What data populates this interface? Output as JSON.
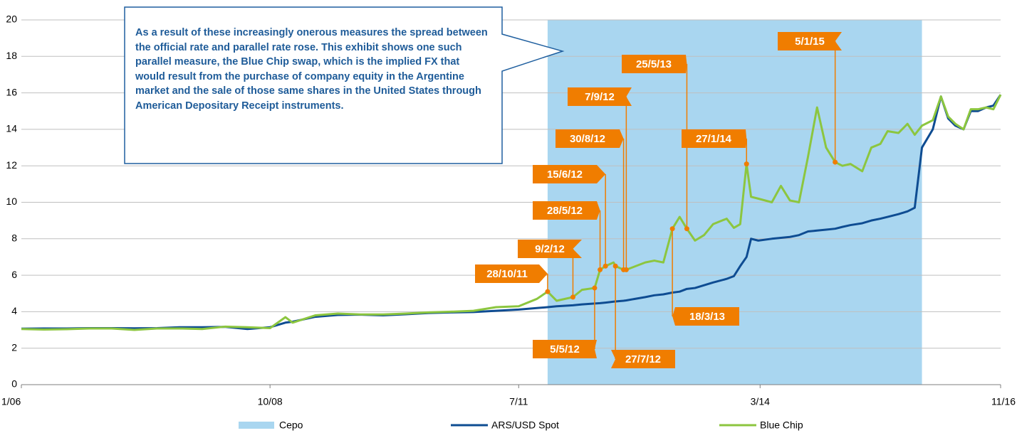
{
  "chart_data": {
    "type": "line",
    "note": "As a result of these increasingly onerous measures the spread between the official rate and parallel rate rose. This exhibit shows one such parallel measure, the Blue Chip swap, which is the implied FX that would result from the purchase of company equity in the Argentine market and the sale of those same shares in the United States through American Depositary Receipt instruments.",
    "x": [
      2006.0,
      2006.25,
      2006.5,
      2006.75,
      2007.0,
      2007.25,
      2007.5,
      2007.75,
      2008.0,
      2008.25,
      2008.5,
      2008.75,
      2008.92,
      2009.0,
      2009.25,
      2009.5,
      2009.75,
      2010.0,
      2010.25,
      2010.5,
      2010.75,
      2011.0,
      2011.25,
      2011.5,
      2011.7,
      2011.82,
      2011.92,
      2012.1,
      2012.2,
      2012.34,
      2012.4,
      2012.46,
      2012.55,
      2012.57,
      2012.66,
      2012.69,
      2012.9,
      2013.0,
      2013.1,
      2013.2,
      2013.28,
      2013.36,
      2013.45,
      2013.55,
      2013.65,
      2013.8,
      2013.88,
      2013.95,
      2014.02,
      2014.07,
      2014.15,
      2014.3,
      2014.4,
      2014.5,
      2014.6,
      2014.7,
      2014.8,
      2014.9,
      2015.0,
      2015.08,
      2015.17,
      2015.3,
      2015.4,
      2015.5,
      2015.58,
      2015.7,
      2015.8,
      2015.88,
      2015.96,
      2016.08,
      2016.17,
      2016.25,
      2016.33,
      2016.42,
      2016.5,
      2016.58,
      2016.67,
      2016.75,
      2016.83
    ],
    "series": [
      {
        "name": "ARS/USD Spot",
        "color": "#0e4c92",
        "values": [
          3.07,
          3.08,
          3.08,
          3.1,
          3.1,
          3.09,
          3.1,
          3.15,
          3.15,
          3.17,
          3.05,
          3.15,
          3.4,
          3.45,
          3.72,
          3.82,
          3.84,
          3.8,
          3.86,
          3.93,
          3.96,
          3.98,
          4.05,
          4.12,
          4.2,
          4.25,
          4.3,
          4.35,
          4.4,
          4.45,
          4.47,
          4.5,
          4.55,
          4.56,
          4.6,
          4.62,
          4.8,
          4.9,
          4.95,
          5.05,
          5.1,
          5.25,
          5.3,
          5.45,
          5.6,
          5.8,
          5.95,
          6.5,
          7.0,
          8.0,
          7.9,
          8.0,
          8.05,
          8.1,
          8.2,
          8.4,
          8.45,
          8.5,
          8.55,
          8.65,
          8.75,
          8.85,
          9.0,
          9.1,
          9.2,
          9.35,
          9.5,
          9.7,
          13.0,
          14.0,
          15.8,
          14.6,
          14.2,
          14.0,
          15.0,
          15.0,
          15.2,
          15.3,
          15.9
        ]
      },
      {
        "name": "Blue Chip",
        "color": "#8cc63f",
        "values": [
          3.05,
          3.02,
          3.04,
          3.08,
          3.08,
          3.0,
          3.08,
          3.08,
          3.05,
          3.18,
          3.15,
          3.1,
          3.7,
          3.4,
          3.8,
          3.9,
          3.85,
          3.85,
          3.9,
          3.96,
          4.0,
          4.05,
          4.25,
          4.3,
          4.7,
          5.1,
          4.6,
          4.8,
          5.2,
          5.3,
          6.3,
          6.5,
          6.7,
          6.5,
          6.3,
          6.3,
          6.7,
          6.8,
          6.7,
          8.55,
          9.2,
          8.55,
          7.9,
          8.2,
          8.8,
          9.1,
          8.6,
          8.8,
          12.1,
          10.3,
          10.2,
          10.0,
          10.9,
          10.1,
          10.0,
          12.5,
          15.2,
          13.0,
          12.2,
          12.0,
          12.1,
          11.7,
          13.0,
          13.2,
          13.9,
          13.8,
          14.3,
          13.7,
          14.2,
          14.5,
          15.8,
          14.7,
          14.3,
          14.0,
          15.1,
          15.1,
          15.2,
          15.1,
          15.9
        ]
      }
    ],
    "shaded": {
      "name": "Cepo",
      "color": "#a9d6f0",
      "x": [
        2011.82,
        2015.96
      ]
    },
    "annotations": [
      {
        "label": "28/10/11",
        "x": 2011.82,
        "y": 5.1
      },
      {
        "label": "9/2/12",
        "x": 2012.1,
        "y": 4.8
      },
      {
        "label": "5/5/12",
        "x": 2012.34,
        "y": 5.3
      },
      {
        "label": "28/5/12",
        "x": 2012.4,
        "y": 6.3
      },
      {
        "label": "15/6/12",
        "x": 2012.46,
        "y": 6.5
      },
      {
        "label": "27/7/12",
        "x": 2012.57,
        "y": 6.5
      },
      {
        "label": "30/8/12",
        "x": 2012.66,
        "y": 6.3
      },
      {
        "label": "7/9/12",
        "x": 2012.69,
        "y": 6.3
      },
      {
        "label": "18/3/13",
        "x": 2013.2,
        "y": 8.55
      },
      {
        "label": "25/5/13",
        "x": 2013.36,
        "y": 8.55
      },
      {
        "label": "27/1/14",
        "x": 2014.02,
        "y": 12.1
      },
      {
        "label": "5/1/15",
        "x": 2015.0,
        "y": 12.2
      }
    ],
    "annotation_color": "#f07d00",
    "xlim": [
      2006,
      2016.83
    ],
    "xticks": [
      {
        "value": 2006.0,
        "label": "1/06"
      },
      {
        "value": 2008.75,
        "label": "10/08"
      },
      {
        "value": 2011.5,
        "label": "7/11"
      },
      {
        "value": 2014.17,
        "label": "3/14"
      },
      {
        "value": 2016.83,
        "label": "11/16"
      }
    ],
    "ylim": [
      0,
      20
    ],
    "yticks": [
      0,
      2,
      4,
      6,
      8,
      10,
      12,
      14,
      16,
      18,
      20
    ],
    "grid": true,
    "legend": "bottom"
  }
}
